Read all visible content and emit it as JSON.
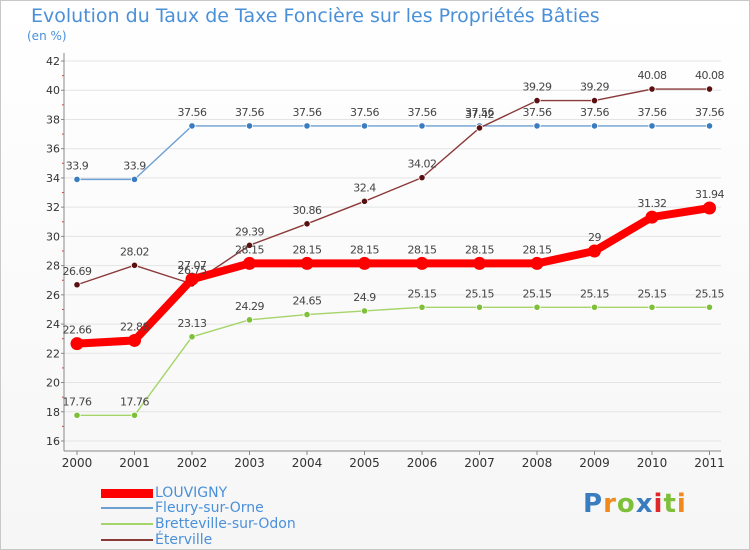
{
  "title": "Evolution du Taux de Taxe Foncière sur les Propriétés Bâties",
  "unit": "(en %)",
  "brand": "Proxiti",
  "chart_data": {
    "type": "line",
    "title": "Evolution du Taux de Taxe Foncière sur les Propriétés Bâties",
    "ylabel": "(en %)",
    "xlabel": "",
    "ylim": [
      16,
      42
    ],
    "yticks": [
      16,
      18,
      20,
      22,
      24,
      26,
      28,
      30,
      32,
      34,
      36,
      38,
      40,
      42
    ],
    "grid": "horizontal",
    "legend": "bottom-left",
    "x": [
      "2000",
      "2001",
      "2002",
      "2003",
      "2004",
      "2005",
      "2006",
      "2007",
      "2008",
      "2009",
      "2010",
      "2011"
    ],
    "series": [
      {
        "name": "LOUVIGNY",
        "color": "#ff0000",
        "marker_color": "#ff0000",
        "values": [
          22.66,
          22.88,
          27.07,
          28.15,
          28.15,
          28.15,
          28.15,
          28.15,
          28.15,
          29,
          31.32,
          31.94
        ],
        "labels": [
          "22.66",
          "22.88",
          "27.07",
          "28.15",
          "28.15",
          "28.15",
          "28.15",
          "28.15",
          "28.15",
          "29",
          "31.32",
          "31.94"
        ]
      },
      {
        "name": "Fleury-sur-Orne",
        "color": "#6c9fd2",
        "marker_color": "#3a7cc0",
        "values": [
          33.9,
          33.9,
          37.56,
          37.56,
          37.56,
          37.56,
          37.56,
          37.56,
          37.56,
          37.56,
          37.56,
          37.56
        ],
        "labels": [
          "33.9",
          "33.9",
          "37.56",
          "37.56",
          "37.56",
          "37.56",
          "37.56",
          "37.56",
          "37.56",
          "37.56",
          "37.56",
          "37.56"
        ]
      },
      {
        "name": "Bretteville-sur-Odon",
        "color": "#a5d46a",
        "marker_color": "#7fc03a",
        "values": [
          17.76,
          17.76,
          23.13,
          24.29,
          24.65,
          24.9,
          25.15,
          25.15,
          25.15,
          25.15,
          25.15,
          25.15
        ],
        "labels": [
          "17.76",
          "17.76",
          "23.13",
          "24.29",
          "24.65",
          "24.9",
          "25.15",
          "25.15",
          "25.15",
          "25.15",
          "25.15",
          "25.15"
        ]
      },
      {
        "name": "Éterville",
        "color": "#8b3a3a",
        "marker_color": "#5a1010",
        "values": [
          26.69,
          28.02,
          26.75,
          29.39,
          30.86,
          32.4,
          34.02,
          37.42,
          39.29,
          39.29,
          40.08,
          40.08
        ],
        "labels": [
          "26.69",
          "28.02",
          "26.75",
          "29.39",
          "30.86",
          "32.4",
          "34.02",
          "37.42",
          "39.29",
          "39.29",
          "40.08",
          "40.08"
        ]
      }
    ]
  }
}
